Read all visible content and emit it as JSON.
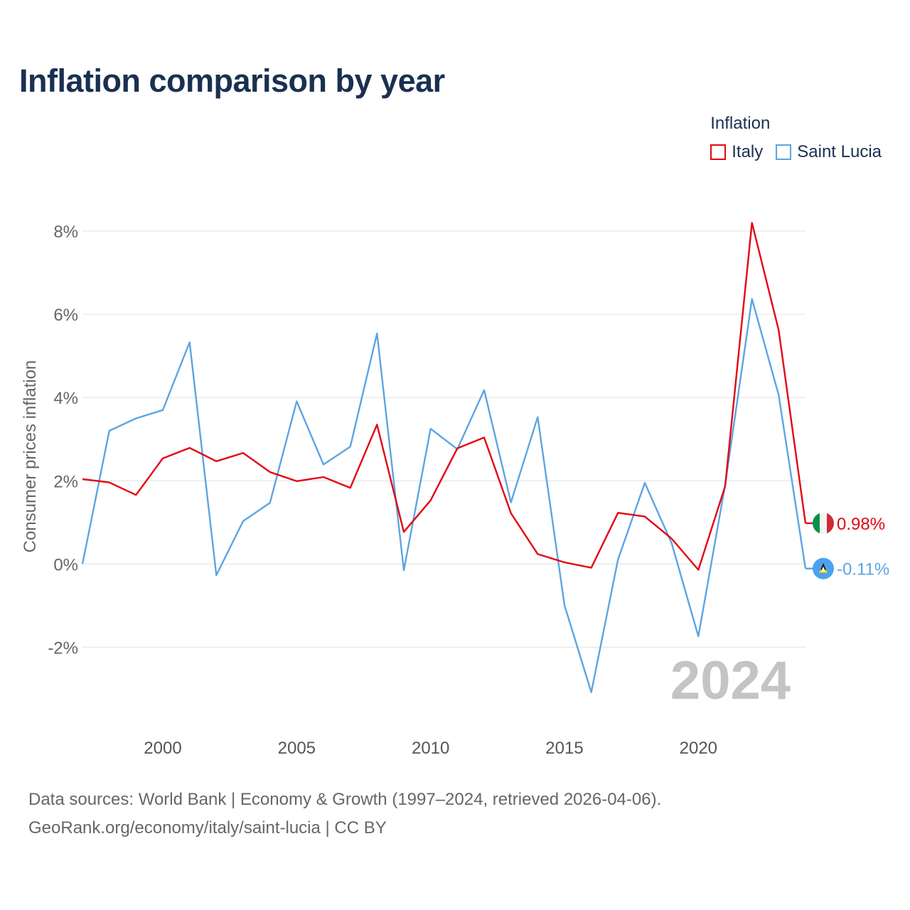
{
  "title": "Inflation comparison by year",
  "legend": {
    "title": "Inflation",
    "items": [
      {
        "name": "Italy",
        "color": "#e30613"
      },
      {
        "name": "Saint Lucia",
        "color": "#5ea4e2"
      }
    ]
  },
  "year_watermark": "2024",
  "source": {
    "line1": "Data sources: World Bank | Economy & Growth (1997–2024, retrieved 2026-04-06).",
    "line2": "GeoRank.org/economy/italy/saint-lucia | CC BY"
  },
  "chart_data": {
    "type": "line",
    "title": "Inflation comparison by year",
    "xlabel": "",
    "ylabel": "Consumer prices inflation",
    "x": [
      1997,
      1998,
      1999,
      2000,
      2001,
      2002,
      2003,
      2004,
      2005,
      2006,
      2007,
      2008,
      2009,
      2010,
      2011,
      2012,
      2013,
      2014,
      2015,
      2016,
      2017,
      2018,
      2019,
      2020,
      2021,
      2022,
      2023,
      2024
    ],
    "xlim": [
      1997,
      2024
    ],
    "ylim": [
      -3.6,
      8.6
    ],
    "xticks": [
      2000,
      2005,
      2010,
      2015,
      2020
    ],
    "yticks": [
      -2,
      0,
      2,
      4,
      6,
      8
    ],
    "ytick_labels": [
      "-2%",
      "0%",
      "2%",
      "4%",
      "6%",
      "8%"
    ],
    "grid": true,
    "series": [
      {
        "name": "Italy",
        "color": "#e30613",
        "end_label": "0.98%",
        "values": [
          2.04,
          1.96,
          1.66,
          2.54,
          2.79,
          2.47,
          2.67,
          2.21,
          1.99,
          2.09,
          1.83,
          3.35,
          0.77,
          1.53,
          2.78,
          3.04,
          1.22,
          0.24,
          0.04,
          -0.09,
          1.23,
          1.14,
          0.61,
          -0.14,
          1.87,
          8.2,
          5.62,
          0.98
        ]
      },
      {
        "name": "Saint Lucia",
        "color": "#5ea4e2",
        "end_label": "-0.11%",
        "values": [
          0.0,
          3.2,
          3.5,
          3.7,
          5.33,
          -0.27,
          1.03,
          1.47,
          3.91,
          2.39,
          2.82,
          5.54,
          -0.15,
          3.25,
          2.76,
          4.18,
          1.48,
          3.53,
          -0.99,
          -3.08,
          0.11,
          1.95,
          0.5,
          -1.74,
          1.9,
          6.37,
          4.06,
          -0.11
        ]
      }
    ]
  }
}
